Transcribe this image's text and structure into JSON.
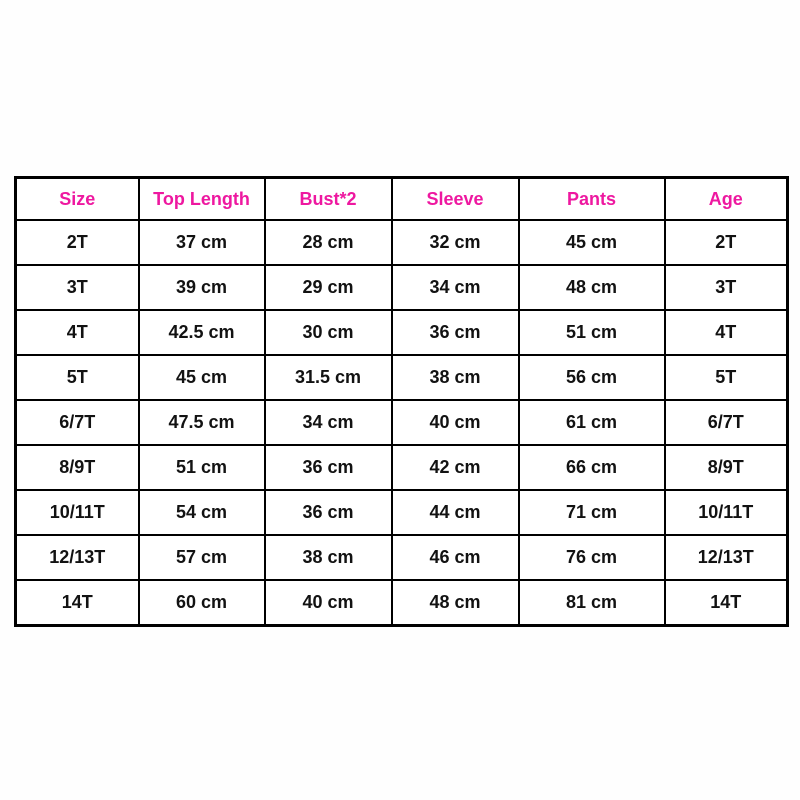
{
  "page": {
    "background_color": "#ffffff",
    "title": "Kids clothing size chart"
  },
  "colors": {
    "header_text": "#ee18a0",
    "body_text": "#121212",
    "grid_border": "#000000",
    "table_background": "#ffffff"
  },
  "chart_data": {
    "type": "table",
    "title": "",
    "columns": [
      "Size",
      "Top Length",
      "Bust*2",
      "Sleeve",
      "Pants",
      "Age"
    ],
    "rows": [
      [
        "2T",
        "37 cm",
        "28 cm",
        "32 cm",
        "45 cm",
        "2T"
      ],
      [
        "3T",
        "39 cm",
        "29 cm",
        "34 cm",
        "48 cm",
        "3T"
      ],
      [
        "4T",
        "42.5 cm",
        "30 cm",
        "36 cm",
        "51 cm",
        "4T"
      ],
      [
        "5T",
        "45 cm",
        "31.5 cm",
        "38 cm",
        "56 cm",
        "5T"
      ],
      [
        "6/7T",
        "47.5 cm",
        "34 cm",
        "40 cm",
        "61 cm",
        "6/7T"
      ],
      [
        "8/9T",
        "51 cm",
        "36 cm",
        "42 cm",
        "66 cm",
        "8/9T"
      ],
      [
        "10/11T",
        "54 cm",
        "36 cm",
        "44 cm",
        "71 cm",
        "10/11T"
      ],
      [
        "12/13T",
        "57 cm",
        "38 cm",
        "46 cm",
        "76 cm",
        "12/13T"
      ],
      [
        "14T",
        "60 cm",
        "40 cm",
        "48 cm",
        "81 cm",
        "14T"
      ]
    ],
    "layout": {
      "grid": true,
      "header_row": true,
      "units": "cm"
    }
  }
}
